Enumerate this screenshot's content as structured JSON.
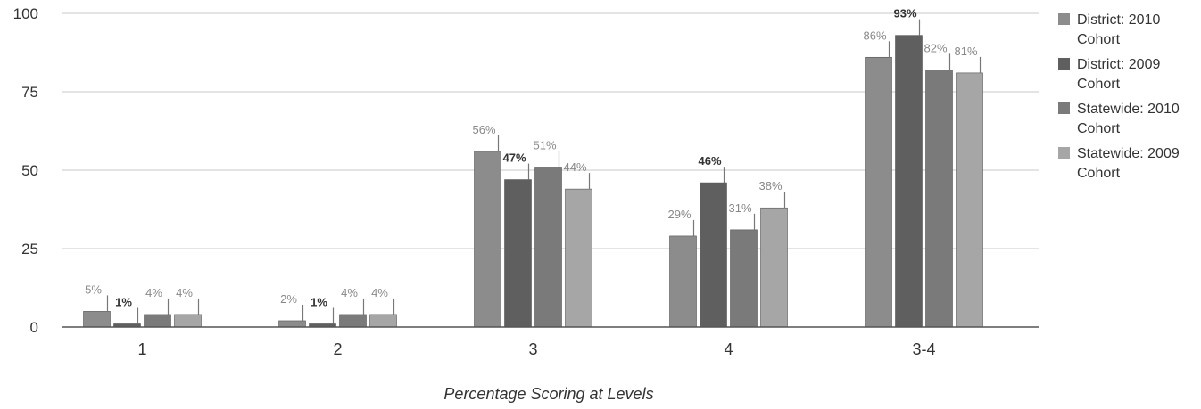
{
  "chart_data": {
    "type": "bar",
    "xlabel": "Percentage Scoring at Levels",
    "ylim": [
      0,
      100
    ],
    "yticks": [
      0,
      25,
      50,
      75,
      100
    ],
    "categories": [
      "1",
      "2",
      "3",
      "4",
      "3-4"
    ],
    "series": [
      {
        "name": "District: 2010 Cohort",
        "color": "#8c8c8c",
        "values": [
          5,
          2,
          56,
          29,
          86
        ],
        "labels": [
          "5%",
          "2%",
          "56%",
          "29%",
          "86%"
        ]
      },
      {
        "name": "District: 2009 Cohort",
        "color": "#5f5f5f",
        "values": [
          1,
          1,
          47,
          46,
          93
        ],
        "labels": [
          "1%",
          "1%",
          "47%",
          "46%",
          "93%"
        ]
      },
      {
        "name": "Statewide: 2010 Cohort",
        "color": "#7a7a7a",
        "values": [
          4,
          4,
          51,
          31,
          82
        ],
        "labels": [
          "4%",
          "4%",
          "51%",
          "31%",
          "82%"
        ]
      },
      {
        "name": "Statewide: 2009 Cohort",
        "color": "#a6a6a6",
        "values": [
          4,
          4,
          44,
          38,
          81
        ],
        "labels": [
          "4%",
          "4%",
          "44%",
          "38%",
          "81%"
        ]
      }
    ],
    "legend_position": "right",
    "grid": true
  }
}
